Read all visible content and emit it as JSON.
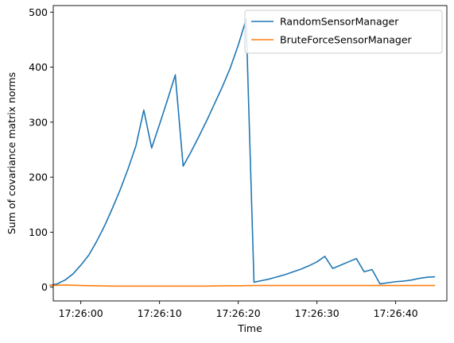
{
  "chart_data": {
    "type": "line",
    "title": "",
    "xlabel": "Time",
    "ylabel": "Sum of covariance matrix norms",
    "x_ticks": [
      "17:26:00",
      "17:26:10",
      "17:26:20",
      "17:26:30",
      "17:26:40"
    ],
    "y_ticks": [
      0,
      100,
      200,
      300,
      400,
      500
    ],
    "xlim": [
      "17:25:56.5",
      "17:26:46.5"
    ],
    "ylim": [
      -25,
      512
    ],
    "legend": "top-right",
    "grid": false,
    "series": [
      {
        "name": "RandomSensorManager",
        "color": "#1f77b4",
        "x": [
          "17:25:56",
          "17:25:57",
          "17:25:58",
          "17:25:59",
          "17:26:00",
          "17:26:01",
          "17:26:02",
          "17:26:03",
          "17:26:04",
          "17:26:05",
          "17:26:06",
          "17:26:07",
          "17:26:08",
          "17:26:09",
          "17:26:10",
          "17:26:11",
          "17:26:12",
          "17:26:13",
          "17:26:14",
          "17:26:15",
          "17:26:16",
          "17:26:17",
          "17:26:18",
          "17:26:19",
          "17:26:20",
          "17:26:21",
          "17:26:22",
          "17:26:23",
          "17:26:24",
          "17:26:25",
          "17:26:26",
          "17:26:27",
          "17:26:28",
          "17:26:29",
          "17:26:30",
          "17:26:31",
          "17:26:32",
          "17:26:33",
          "17:26:34",
          "17:26:35",
          "17:26:36",
          "17:26:37",
          "17:26:38",
          "17:26:39",
          "17:26:40",
          "17:26:41",
          "17:26:42",
          "17:26:43",
          "17:26:44",
          "17:26:45"
        ],
        "y": [
          3,
          6,
          13,
          24,
          40,
          58,
          83,
          111,
          143,
          177,
          215,
          257,
          322,
          253,
          296,
          340,
          386,
          220,
          246,
          274,
          303,
          334,
          365,
          399,
          440,
          487,
          9,
          12,
          15,
          19,
          23,
          28,
          33,
          39,
          46,
          56,
          34,
          40,
          46,
          52,
          28,
          32,
          6,
          8,
          10,
          11,
          13,
          16,
          18,
          19
        ]
      },
      {
        "name": "BruteForceSensorManager",
        "color": "#ff7f0e",
        "x": [
          "17:25:56",
          "17:25:58",
          "17:26:00",
          "17:26:02",
          "17:26:04",
          "17:26:06",
          "17:26:08",
          "17:26:10",
          "17:26:12",
          "17:26:14",
          "17:26:16",
          "17:26:18",
          "17:26:20",
          "17:26:22",
          "17:26:24",
          "17:26:26",
          "17:26:28",
          "17:26:30",
          "17:26:32",
          "17:26:34",
          "17:26:36",
          "17:26:38",
          "17:26:40",
          "17:26:42",
          "17:26:44",
          "17:26:45"
        ],
        "y": [
          3,
          4,
          3,
          2.5,
          2,
          2,
          2,
          2,
          2,
          2,
          2,
          2.5,
          2.5,
          3,
          3,
          3,
          3,
          3,
          3,
          3,
          3,
          3,
          3,
          3,
          3,
          3
        ]
      }
    ]
  }
}
